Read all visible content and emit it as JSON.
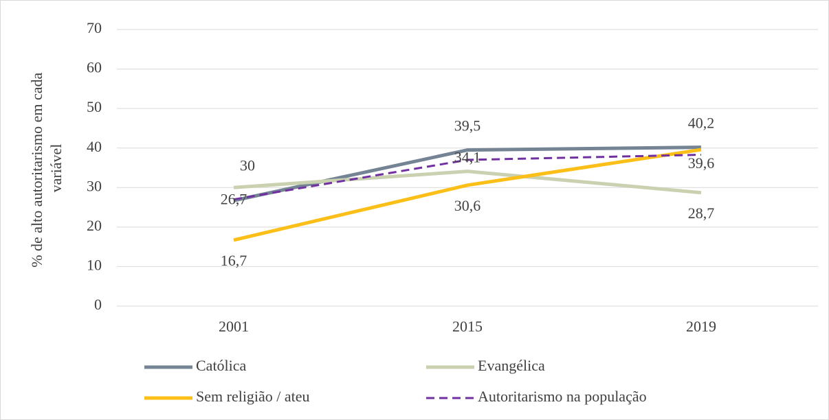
{
  "chart_data": {
    "type": "line",
    "y_label": [
      "% de alto autoritarismo em cada",
      "variável"
    ],
    "categories": [
      "2001",
      "2015",
      "2019"
    ],
    "ylim": [
      0,
      70
    ],
    "yticks": [
      0,
      10,
      20,
      30,
      40,
      50,
      60,
      70
    ],
    "grid": true,
    "legend": "bottom",
    "series": [
      {
        "name": "Católica",
        "color": "#748494",
        "dash": false,
        "values": [
          26.7,
          39.5,
          40.2
        ],
        "value_labels": [
          "26,7",
          "39,5",
          "40,2"
        ]
      },
      {
        "name": "Evangélica",
        "color": "#c9d1b0",
        "dash": false,
        "values": [
          30,
          34.1,
          28.7
        ],
        "value_labels": [
          "30",
          "34,1",
          "28,7"
        ]
      },
      {
        "name": "Sem religião / ateu",
        "color": "#fbbf18",
        "dash": false,
        "values": [
          16.7,
          30.6,
          39.6
        ],
        "value_labels": [
          "16,7",
          "30,6",
          "39,6"
        ]
      },
      {
        "name": "Autoritarismo na população",
        "color": "#7030a0",
        "dash": true,
        "values": [
          27,
          37,
          38.3
        ]
      }
    ]
  }
}
